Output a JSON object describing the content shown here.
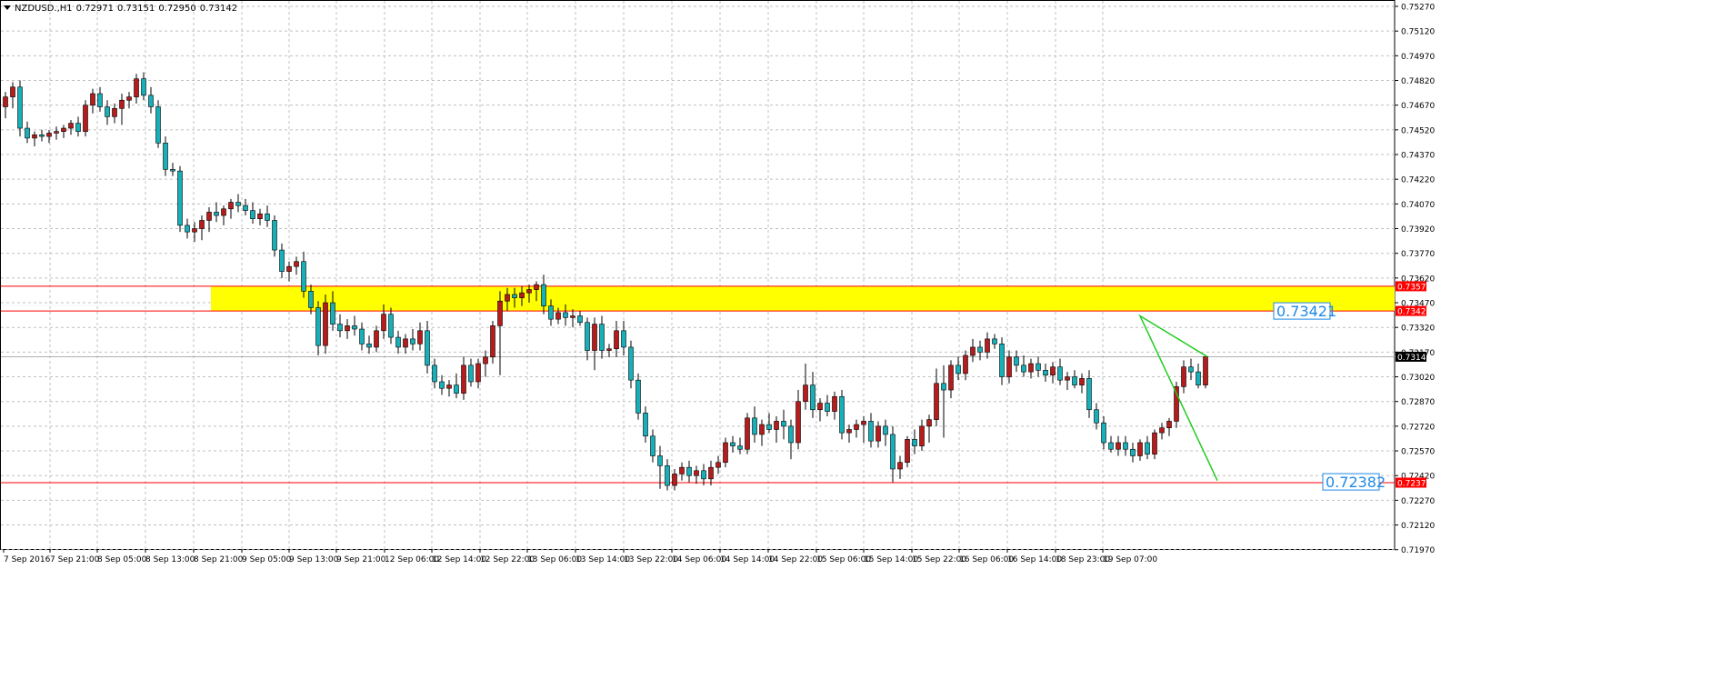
{
  "header": {
    "symbol": "NZDUSD.,H1",
    "open": "0.72971",
    "high": "0.73151",
    "low": "0.72950",
    "close": "0.73142"
  },
  "colors": {
    "background": "#ffffff",
    "grid": "#c0c0c0",
    "bull_candle": "#b71c1c",
    "bear_candle": "#18b0b8",
    "wick": "#000000",
    "zone_fill": "#ffff00",
    "zone_line": "#ff0000",
    "support_line": "#ff0000",
    "projection_line": "#22cc22",
    "current_price_line": "#b0b0b0",
    "annotation_text": "#1e88e5"
  },
  "chart_data": {
    "type": "candlestick",
    "title": "NZDUSD.,H1",
    "ylim": [
      0.71974,
      0.7527
    ],
    "grid": true,
    "y_ticks": [
      "0.75270",
      "0.75120",
      "0.74970",
      "0.74820",
      "0.74670",
      "0.74520",
      "0.74370",
      "0.74220",
      "0.74070",
      "0.73920",
      "0.73770",
      "0.73620",
      "0.73470",
      "0.73320",
      "0.73170",
      "0.73020",
      "0.72870",
      "0.72720",
      "0.72570",
      "0.72420",
      "0.72270",
      "0.72120",
      "0.71970"
    ],
    "x_labels": [
      "7 Sep 2016",
      "7 Sep 21:00",
      "8 Sep 05:00",
      "8 Sep 13:00",
      "8 Sep 21:00",
      "9 Sep 05:00",
      "9 Sep 13:00",
      "9 Sep 21:00",
      "12 Sep 06:00",
      "12 Sep 14:00",
      "12 Sep 22:00",
      "13 Sep 06:00",
      "13 Sep 14:00",
      "13 Sep 22:00",
      "14 Sep 06:00",
      "14 Sep 14:00",
      "14 Sep 22:00",
      "15 Sep 06:00",
      "15 Sep 14:00",
      "15 Sep 22:00",
      "16 Sep 06:00",
      "16 Sep 14:00",
      "18 Sep 23:00",
      "19 Sep 07:00"
    ],
    "candles": [
      [
        0.7466,
        0.7475,
        0.7459,
        0.7472
      ],
      [
        0.7472,
        0.7481,
        0.7465,
        0.7478
      ],
      [
        0.7478,
        0.7482,
        0.7448,
        0.7453
      ],
      [
        0.7453,
        0.7457,
        0.7444,
        0.7447
      ],
      [
        0.7447,
        0.7451,
        0.7442,
        0.7449
      ],
      [
        0.7449,
        0.7452,
        0.7445,
        0.7448
      ],
      [
        0.7448,
        0.7452,
        0.7444,
        0.745
      ],
      [
        0.745,
        0.7454,
        0.7446,
        0.7451
      ],
      [
        0.7451,
        0.7455,
        0.7447,
        0.7453
      ],
      [
        0.7453,
        0.7458,
        0.7449,
        0.7456
      ],
      [
        0.7456,
        0.746,
        0.7448,
        0.7451
      ],
      [
        0.7451,
        0.747,
        0.7448,
        0.7467
      ],
      [
        0.7467,
        0.7477,
        0.7462,
        0.7474
      ],
      [
        0.7474,
        0.7478,
        0.7463,
        0.7466
      ],
      [
        0.7466,
        0.747,
        0.7455,
        0.746
      ],
      [
        0.746,
        0.7468,
        0.7456,
        0.7465
      ],
      [
        0.7465,
        0.7474,
        0.7455,
        0.747
      ],
      [
        0.747,
        0.7475,
        0.7465,
        0.7472
      ],
      [
        0.7472,
        0.7486,
        0.7468,
        0.7483
      ],
      [
        0.7483,
        0.7487,
        0.747,
        0.7473
      ],
      [
        0.7473,
        0.7478,
        0.7462,
        0.7466
      ],
      [
        0.7466,
        0.747,
        0.7441,
        0.7444
      ],
      [
        0.7444,
        0.7448,
        0.7424,
        0.7428
      ],
      [
        0.7428,
        0.7432,
        0.7424,
        0.7427
      ],
      [
        0.7427,
        0.743,
        0.739,
        0.7394
      ],
      [
        0.7394,
        0.7398,
        0.7386,
        0.739
      ],
      [
        0.739,
        0.7396,
        0.7384,
        0.7392
      ],
      [
        0.7392,
        0.74,
        0.7385,
        0.7397
      ],
      [
        0.7397,
        0.7405,
        0.739,
        0.7402
      ],
      [
        0.7402,
        0.7408,
        0.7396,
        0.74
      ],
      [
        0.74,
        0.7406,
        0.7394,
        0.7404
      ],
      [
        0.7404,
        0.741,
        0.7398,
        0.7408
      ],
      [
        0.7408,
        0.7413,
        0.7402,
        0.7406
      ],
      [
        0.7406,
        0.741,
        0.74,
        0.7403
      ],
      [
        0.7403,
        0.7408,
        0.7395,
        0.7398
      ],
      [
        0.7398,
        0.7404,
        0.7394,
        0.7401
      ],
      [
        0.7401,
        0.7406,
        0.7393,
        0.7397
      ],
      [
        0.7397,
        0.74,
        0.7375,
        0.7379
      ],
      [
        0.7379,
        0.7383,
        0.7362,
        0.7366
      ],
      [
        0.7366,
        0.7372,
        0.736,
        0.7369
      ],
      [
        0.7369,
        0.7375,
        0.7364,
        0.7372
      ],
      [
        0.7372,
        0.7378,
        0.735,
        0.7354
      ],
      [
        0.7354,
        0.7358,
        0.734,
        0.7344
      ],
      [
        0.7344,
        0.7348,
        0.7315,
        0.7321
      ],
      [
        0.7321,
        0.7352,
        0.7316,
        0.7347
      ],
      [
        0.7347,
        0.7354,
        0.733,
        0.7334
      ],
      [
        0.7334,
        0.734,
        0.7326,
        0.733
      ],
      [
        0.733,
        0.7337,
        0.7325,
        0.7333
      ],
      [
        0.7333,
        0.7339,
        0.7327,
        0.7331
      ],
      [
        0.7331,
        0.7335,
        0.7318,
        0.7322
      ],
      [
        0.7322,
        0.7327,
        0.7316,
        0.732
      ],
      [
        0.732,
        0.7333,
        0.7317,
        0.733
      ],
      [
        0.733,
        0.7346,
        0.7325,
        0.734
      ],
      [
        0.734,
        0.7344,
        0.7322,
        0.7326
      ],
      [
        0.7326,
        0.733,
        0.7316,
        0.732
      ],
      [
        0.732,
        0.7328,
        0.7316,
        0.7325
      ],
      [
        0.7325,
        0.7331,
        0.7318,
        0.7322
      ],
      [
        0.7322,
        0.7335,
        0.7318,
        0.733
      ],
      [
        0.733,
        0.7336,
        0.7304,
        0.7309
      ],
      [
        0.7309,
        0.7313,
        0.7295,
        0.7299
      ],
      [
        0.7299,
        0.7303,
        0.7291,
        0.7295
      ],
      [
        0.7295,
        0.73,
        0.729,
        0.7297
      ],
      [
        0.7297,
        0.7304,
        0.7289,
        0.7292
      ],
      [
        0.7292,
        0.7314,
        0.7288,
        0.7309
      ],
      [
        0.7309,
        0.7313,
        0.7296,
        0.7299
      ],
      [
        0.7299,
        0.7313,
        0.7295,
        0.731
      ],
      [
        0.731,
        0.7318,
        0.7302,
        0.7314
      ],
      [
        0.7314,
        0.7336,
        0.731,
        0.7333
      ],
      [
        0.7333,
        0.7354,
        0.7303,
        0.7348
      ],
      [
        0.7348,
        0.7356,
        0.7342,
        0.7352
      ],
      [
        0.7352,
        0.7356,
        0.7344,
        0.735
      ],
      [
        0.735,
        0.7357,
        0.7345,
        0.7353
      ],
      [
        0.7353,
        0.7358,
        0.7347,
        0.7355
      ],
      [
        0.7355,
        0.736,
        0.7348,
        0.7358
      ],
      [
        0.7358,
        0.7364,
        0.734,
        0.7345
      ],
      [
        0.7345,
        0.7349,
        0.7333,
        0.7337
      ],
      [
        0.7337,
        0.7344,
        0.7334,
        0.7341
      ],
      [
        0.7341,
        0.7346,
        0.7333,
        0.7338
      ],
      [
        0.7338,
        0.7343,
        0.7332,
        0.7339
      ],
      [
        0.7339,
        0.7342,
        0.7333,
        0.7335
      ],
      [
        0.7335,
        0.7338,
        0.7312,
        0.7318
      ],
      [
        0.7318,
        0.7338,
        0.7306,
        0.7334
      ],
      [
        0.7334,
        0.7339,
        0.7313,
        0.7318
      ],
      [
        0.7318,
        0.7322,
        0.7314,
        0.7319
      ],
      [
        0.7319,
        0.7336,
        0.7314,
        0.733
      ],
      [
        0.733,
        0.7336,
        0.7315,
        0.732
      ],
      [
        0.732,
        0.7324,
        0.7295,
        0.73
      ],
      [
        0.73,
        0.7304,
        0.7276,
        0.728
      ],
      [
        0.728,
        0.7284,
        0.7262,
        0.7266
      ],
      [
        0.7266,
        0.727,
        0.725,
        0.7254
      ],
      [
        0.7254,
        0.726,
        0.7234,
        0.7248
      ],
      [
        0.7248,
        0.7252,
        0.7233,
        0.7236
      ],
      [
        0.7236,
        0.7246,
        0.7233,
        0.7243
      ],
      [
        0.7243,
        0.725,
        0.7239,
        0.7247
      ],
      [
        0.7247,
        0.7251,
        0.7238,
        0.7242
      ],
      [
        0.7242,
        0.7248,
        0.7237,
        0.7245
      ],
      [
        0.7245,
        0.7249,
        0.7236,
        0.724
      ],
      [
        0.724,
        0.7251,
        0.7236,
        0.7247
      ],
      [
        0.7247,
        0.7254,
        0.7243,
        0.725
      ],
      [
        0.725,
        0.7265,
        0.7247,
        0.7262
      ],
      [
        0.7262,
        0.7266,
        0.7256,
        0.726
      ],
      [
        0.726,
        0.7265,
        0.7255,
        0.7258
      ],
      [
        0.7258,
        0.728,
        0.7255,
        0.7277
      ],
      [
        0.7277,
        0.7284,
        0.7262,
        0.7267
      ],
      [
        0.7267,
        0.7276,
        0.726,
        0.7273
      ],
      [
        0.7273,
        0.728,
        0.7268,
        0.727
      ],
      [
        0.727,
        0.7278,
        0.7262,
        0.7275
      ],
      [
        0.7275,
        0.7282,
        0.7264,
        0.7272
      ],
      [
        0.7272,
        0.7276,
        0.7252,
        0.7262
      ],
      [
        0.7262,
        0.7294,
        0.7258,
        0.7287
      ],
      [
        0.7287,
        0.731,
        0.7282,
        0.7297
      ],
      [
        0.7297,
        0.7305,
        0.7277,
        0.7282
      ],
      [
        0.7282,
        0.7289,
        0.7275,
        0.7286
      ],
      [
        0.7286,
        0.7291,
        0.7278,
        0.7281
      ],
      [
        0.7281,
        0.7293,
        0.7276,
        0.729
      ],
      [
        0.729,
        0.7294,
        0.7264,
        0.7268
      ],
      [
        0.7268,
        0.7273,
        0.7262,
        0.727
      ],
      [
        0.727,
        0.7276,
        0.7265,
        0.7273
      ],
      [
        0.7273,
        0.7278,
        0.7262,
        0.7275
      ],
      [
        0.7275,
        0.728,
        0.7259,
        0.7263
      ],
      [
        0.7263,
        0.7275,
        0.7259,
        0.7272
      ],
      [
        0.7272,
        0.7276,
        0.726,
        0.7267
      ],
      [
        0.7267,
        0.7272,
        0.7238,
        0.7246
      ],
      [
        0.7246,
        0.7254,
        0.724,
        0.725
      ],
      [
        0.725,
        0.7266,
        0.7247,
        0.7264
      ],
      [
        0.7264,
        0.727,
        0.7255,
        0.726
      ],
      [
        0.726,
        0.7276,
        0.7257,
        0.7272
      ],
      [
        0.7272,
        0.7279,
        0.7262,
        0.7276
      ],
      [
        0.7276,
        0.7307,
        0.7272,
        0.7298
      ],
      [
        0.7298,
        0.7309,
        0.7265,
        0.7294
      ],
      [
        0.7294,
        0.7312,
        0.7289,
        0.7309
      ],
      [
        0.7309,
        0.7314,
        0.73,
        0.7304
      ],
      [
        0.7304,
        0.7318,
        0.73,
        0.7315
      ],
      [
        0.7315,
        0.7325,
        0.7311,
        0.732
      ],
      [
        0.732,
        0.7324,
        0.7312,
        0.7317
      ],
      [
        0.7317,
        0.7329,
        0.7313,
        0.7325
      ],
      [
        0.7325,
        0.7328,
        0.7319,
        0.7322
      ],
      [
        0.7322,
        0.7326,
        0.7297,
        0.7302
      ],
      [
        0.7302,
        0.7318,
        0.7298,
        0.7314
      ],
      [
        0.7314,
        0.7318,
        0.7305,
        0.7309
      ],
      [
        0.7309,
        0.7315,
        0.7302,
        0.7305
      ],
      [
        0.7305,
        0.7313,
        0.7301,
        0.731
      ],
      [
        0.731,
        0.7314,
        0.7302,
        0.7306
      ],
      [
        0.7306,
        0.731,
        0.7299,
        0.7303
      ],
      [
        0.7303,
        0.7311,
        0.7298,
        0.7308
      ],
      [
        0.7308,
        0.7313,
        0.7297,
        0.73
      ],
      [
        0.73,
        0.7305,
        0.7294,
        0.7302
      ],
      [
        0.7302,
        0.7306,
        0.7295,
        0.7297
      ],
      [
        0.7297,
        0.7304,
        0.7292,
        0.7301
      ],
      [
        0.7301,
        0.7306,
        0.7277,
        0.7282
      ],
      [
        0.7282,
        0.7286,
        0.727,
        0.7274
      ],
      [
        0.7274,
        0.7278,
        0.7258,
        0.7262
      ],
      [
        0.7262,
        0.7266,
        0.7256,
        0.7258
      ],
      [
        0.7258,
        0.7266,
        0.7254,
        0.7262
      ],
      [
        0.7262,
        0.7266,
        0.7254,
        0.7258
      ],
      [
        0.7258,
        0.7262,
        0.725,
        0.7254
      ],
      [
        0.7254,
        0.7264,
        0.7251,
        0.7262
      ],
      [
        0.7262,
        0.7266,
        0.7252,
        0.7255
      ],
      [
        0.7255,
        0.727,
        0.7252,
        0.7268
      ],
      [
        0.7268,
        0.7274,
        0.7264,
        0.7271
      ],
      [
        0.7271,
        0.7277,
        0.7266,
        0.7275
      ],
      [
        0.7275,
        0.7299,
        0.7271,
        0.7296
      ],
      [
        0.7296,
        0.7312,
        0.7292,
        0.7308
      ],
      [
        0.7308,
        0.7313,
        0.73,
        0.7305
      ],
      [
        0.7305,
        0.731,
        0.7295,
        0.7297
      ],
      [
        0.7297,
        0.7315,
        0.7295,
        0.73142
      ]
    ],
    "levels": [
      {
        "label": "0.73570",
        "price": 0.7357,
        "style": "zone-top"
      },
      {
        "label": "0.73420",
        "price": 0.7342,
        "style": "zone-bottom"
      },
      {
        "label": "0.72377",
        "price": 0.72377,
        "style": "support"
      }
    ],
    "current_price": {
      "label": "0.73142",
      "price": 0.73142
    },
    "zone": {
      "top": 0.7357,
      "bottom": 0.7342
    },
    "projection": {
      "points": [
        [
          0.73142,
          0
        ],
        [
          0.7339,
          9
        ],
        [
          0.7239,
          25
        ]
      ]
    },
    "annotations": [
      {
        "text": "0.73421",
        "price": 0.7342
      },
      {
        "text": "0.72382",
        "price": 0.72382
      }
    ]
  }
}
